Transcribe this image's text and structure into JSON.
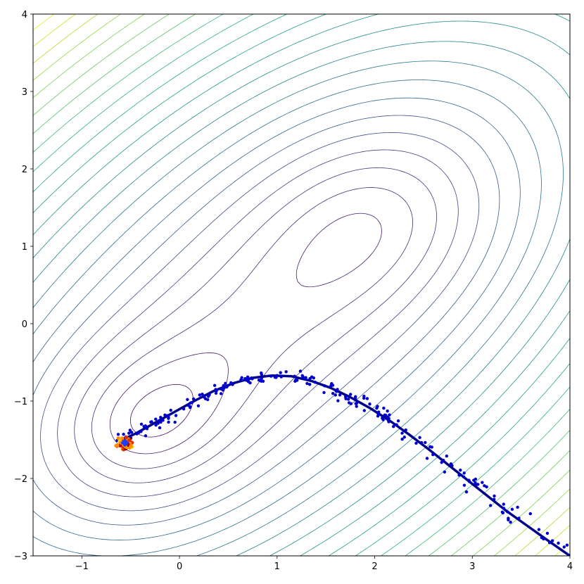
{
  "chart_data": {
    "type": "scatter",
    "title": "",
    "xlabel": "",
    "ylabel": "",
    "xlim": [
      -1.5,
      4
    ],
    "ylim": [
      -3,
      4
    ],
    "grid": false,
    "legend": "none",
    "xticks": [
      -1,
      0,
      1,
      2,
      3,
      4
    ],
    "yticks": [
      -3,
      -2,
      -1,
      0,
      1,
      2,
      3,
      4
    ],
    "xtick_labels": [
      "−1",
      "0",
      "1",
      "2",
      "3",
      "4"
    ],
    "ytick_labels": [
      "−3",
      "−2",
      "−1",
      "0",
      "1",
      "2",
      "3",
      "4"
    ],
    "contour": {
      "levels": 24,
      "colormap": [
        "#440154",
        "#482878",
        "#3e4989",
        "#31688e",
        "#26828e",
        "#1f9e89",
        "#35b779",
        "#6ece58",
        "#b5de2b",
        "#fde725"
      ]
    },
    "trajectory": {
      "color": "#00008b",
      "x": [
        -0.62,
        -0.45,
        -0.25,
        -0.05,
        0.15,
        0.35,
        0.55,
        0.75,
        0.95,
        1.15,
        1.35,
        1.55,
        1.75,
        1.95,
        2.15,
        2.35,
        2.55,
        2.75,
        2.95,
        3.15,
        3.35,
        3.55,
        3.75,
        4.0
      ],
      "y": [
        -1.52,
        -1.42,
        -1.28,
        -1.14,
        -1.0,
        -0.87,
        -0.77,
        -0.7,
        -0.67,
        -0.68,
        -0.74,
        -0.83,
        -0.95,
        -1.09,
        -1.25,
        -1.43,
        -1.62,
        -1.82,
        -2.02,
        -2.22,
        -2.42,
        -2.6,
        -2.78,
        -3.0
      ]
    },
    "markers": {
      "cloud_color": "#0000cd",
      "cloud_count": 220,
      "cloud_spread": 0.05,
      "cluster_colors": [
        "#8b0000",
        "#c00000",
        "#e03000",
        "#ff8c00",
        "#ffd700"
      ],
      "cluster_center": [
        -0.56,
        -1.55
      ],
      "cluster_count": 70,
      "cluster_spread": 0.05,
      "minimum_marker": {
        "x": -0.56,
        "y": -1.54,
        "color": "#1e3cff"
      }
    }
  }
}
